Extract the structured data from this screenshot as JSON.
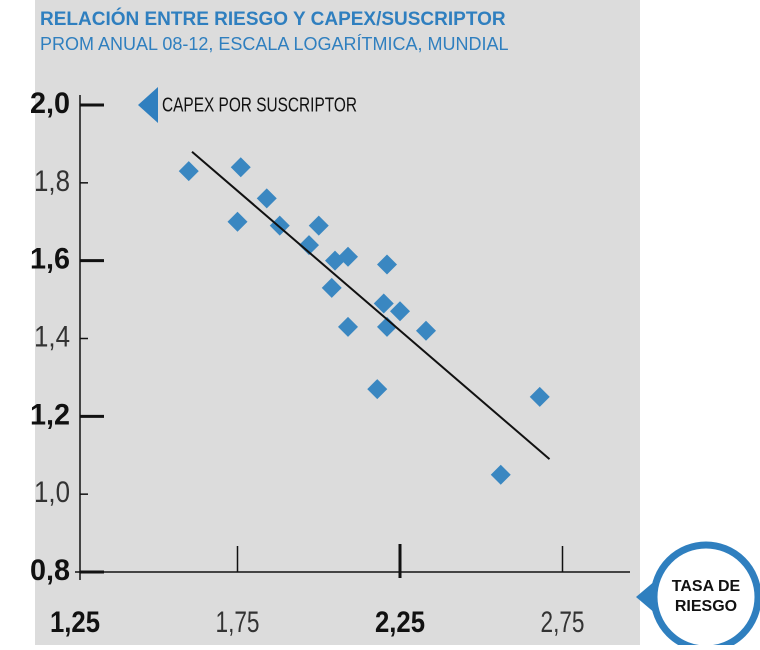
{
  "chart_data": {
    "type": "scatter",
    "title": "RELACIÓN ENTRE RIESGO Y CAPEX/SUSCRIPTOR",
    "subtitle": "PROM ANUAL 08-12, ESCALA LOGARÍTMICA, MUNDIAL",
    "y_label": "CAPEX POR SUSCRIPTOR",
    "x_label": [
      "TASA DE",
      "RIESGO"
    ],
    "color": "#3a87c1",
    "x": [
      1.6,
      1.76,
      1.75,
      1.84,
      1.88,
      1.97,
      2.0,
      2.05,
      2.09,
      2.04,
      2.21,
      2.2,
      2.25,
      2.21,
      2.09,
      2.33,
      2.18,
      2.56,
      2.68
    ],
    "values": [
      1.83,
      1.84,
      1.7,
      1.76,
      1.69,
      1.64,
      1.69,
      1.6,
      1.61,
      1.53,
      1.59,
      1.49,
      1.47,
      1.43,
      1.43,
      1.42,
      1.27,
      1.05,
      1.25
    ],
    "trendline": {
      "x": [
        1.61,
        2.71
      ],
      "y": [
        1.88,
        1.09
      ]
    },
    "xlim": [
      1.25,
      2.95
    ],
    "ylim": [
      0.8,
      2.0
    ],
    "xticks": [
      {
        "value": 1.25,
        "label": "1,25"
      },
      {
        "value": 1.75,
        "label": "1,75"
      },
      {
        "value": 2.25,
        "label": "2,25"
      },
      {
        "value": 2.75,
        "label": "2,75"
      }
    ],
    "yticks": [
      {
        "value": 0.8,
        "label": "0,8"
      },
      {
        "value": 1.0,
        "label": "1,0"
      },
      {
        "value": 1.2,
        "label": "1,2"
      },
      {
        "value": 1.4,
        "label": "1,4"
      },
      {
        "value": 1.6,
        "label": "1,6"
      },
      {
        "value": 1.8,
        "label": "1,8"
      },
      {
        "value": 2.0,
        "label": "2,0"
      }
    ]
  }
}
